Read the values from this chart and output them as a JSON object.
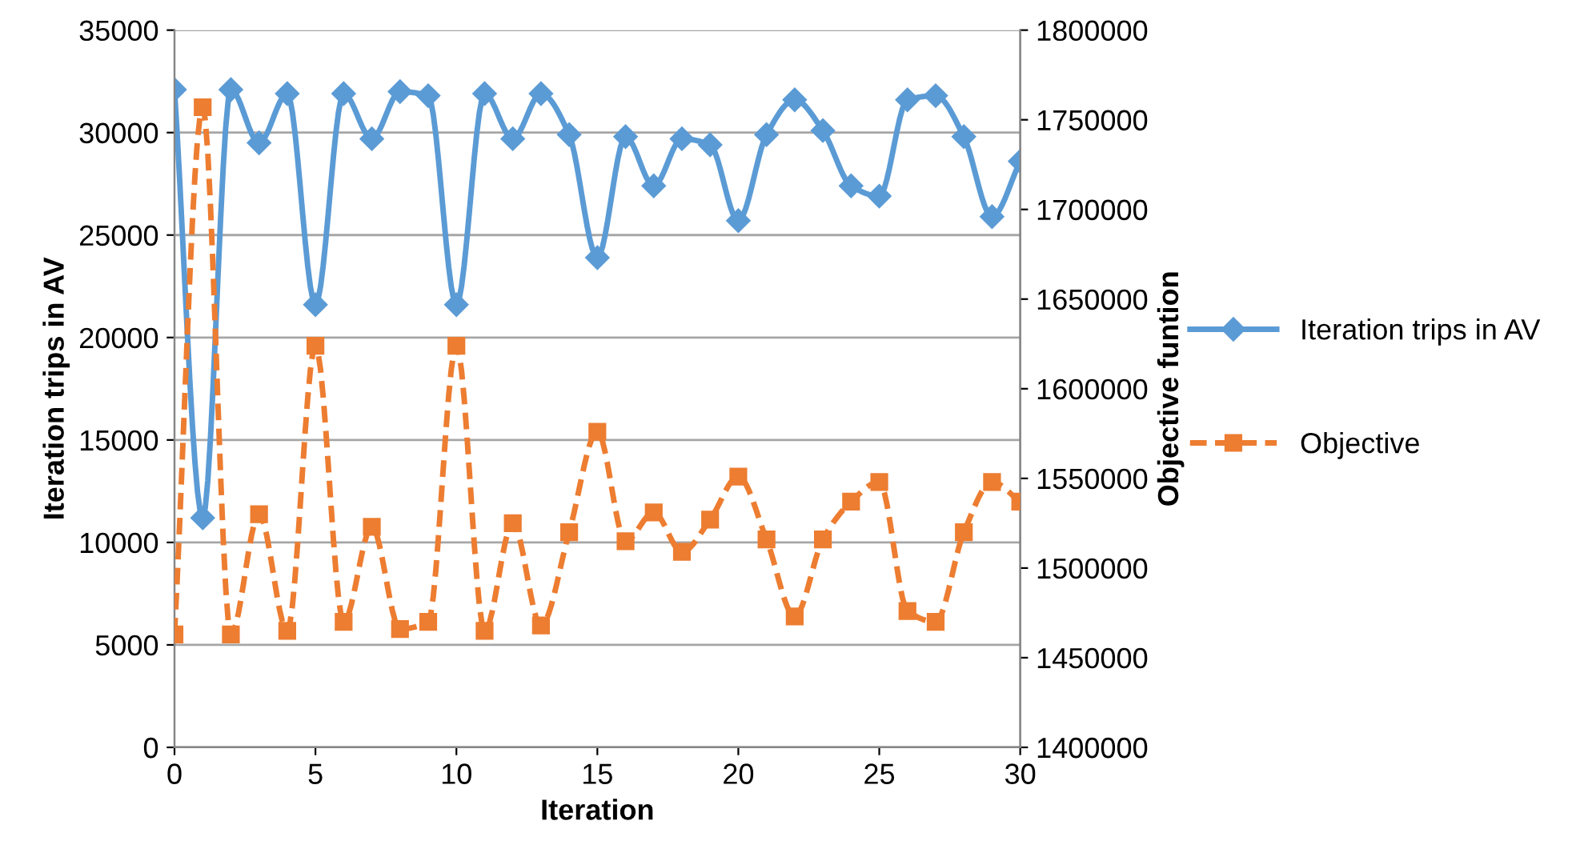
{
  "chart_data": {
    "type": "line",
    "xlabel": "Iteration",
    "ylabel": "Iteration trips in AV",
    "y2label": "Objective funtion",
    "x": [
      0,
      1,
      2,
      3,
      4,
      5,
      6,
      7,
      8,
      9,
      10,
      11,
      12,
      13,
      14,
      15,
      16,
      17,
      18,
      19,
      20,
      21,
      22,
      23,
      24,
      25,
      26,
      27,
      28,
      29,
      30
    ],
    "series": [
      {
        "name": "Iteration trips in AV",
        "color": "#5b9bd5",
        "marker": "diamond",
        "line_style": "solid",
        "values": [
          32100,
          11200,
          32100,
          29500,
          31900,
          21600,
          31900,
          29700,
          32000,
          31800,
          21600,
          31900,
          29700,
          31900,
          29900,
          23900,
          29800,
          27400,
          29700,
          29400,
          25700,
          29900,
          31600,
          30100,
          27400,
          26900,
          31600,
          31800,
          29800,
          25900,
          28600
        ]
      },
      {
        "name": "Objective",
        "color": "#ed7d31",
        "marker": "square",
        "line_style": "dashed",
        "axis": "y2",
        "values": [
          1463000,
          1757000,
          1463000,
          1530000,
          1465000,
          1624000,
          1470000,
          1523000,
          1466000,
          1470000,
          1624000,
          1465000,
          1525000,
          1468000,
          1520000,
          1576000,
          1515000,
          1531000,
          1509000,
          1527000,
          1551000,
          1516000,
          1473000,
          1516000,
          1537000,
          1548000,
          1476000,
          1470000,
          1520000,
          1548000,
          1537000
        ]
      }
    ],
    "xlim": [
      0,
      30
    ],
    "xticks": [
      0,
      5,
      10,
      15,
      20,
      25,
      30
    ],
    "ylim": [
      0,
      35000
    ],
    "yticks": [
      0,
      5000,
      10000,
      15000,
      20000,
      25000,
      30000,
      35000
    ],
    "y2lim": [
      1400000,
      1800000
    ],
    "y2ticks": [
      1400000,
      1450000,
      1500000,
      1550000,
      1600000,
      1650000,
      1700000,
      1750000,
      1800000
    ],
    "grid": "y",
    "legend": "right"
  }
}
